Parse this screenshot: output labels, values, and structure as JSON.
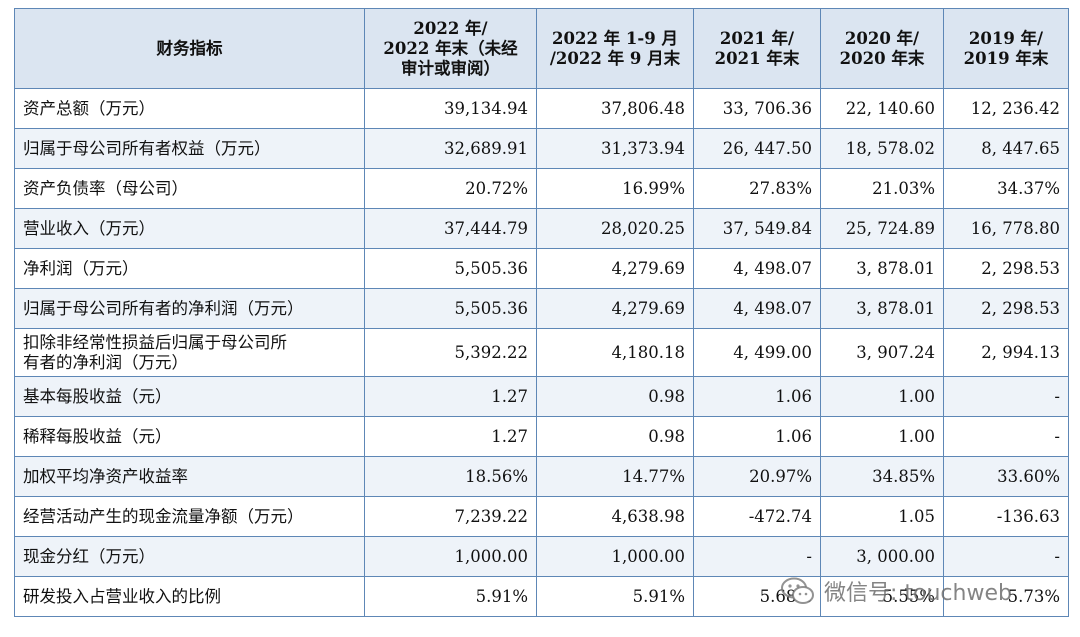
{
  "table": {
    "headers": [
      "财务指标",
      "2022 年/\n2022 年末（未经\n审计或审阅）",
      "2022 年 1-9 月\n/2022 年 9 月末",
      "2021 年/\n2021 年末",
      "2020 年/\n2020 年末",
      "2019 年/\n2019 年末"
    ],
    "rows": [
      [
        "资产总额（万元）",
        "39,134.94",
        "37,806.48",
        "33, 706.36",
        "22, 140.60",
        "12, 236.42"
      ],
      [
        "归属于母公司所有者权益（万元）",
        "32,689.91",
        "31,373.94",
        "26, 447.50",
        "18, 578.02",
        "8, 447.65"
      ],
      [
        "资产负债率（母公司）",
        "20.72%",
        "16.99%",
        "27.83%",
        "21.03%",
        "34.37%"
      ],
      [
        "营业收入（万元）",
        "37,444.79",
        "28,020.25",
        "37, 549.84",
        "25, 724.89",
        "16, 778.80"
      ],
      [
        "净利润（万元）",
        "5,505.36",
        "4,279.69",
        "4, 498.07",
        "3, 878.01",
        "2, 298.53"
      ],
      [
        "归属于母公司所有者的净利润（万元）",
        "5,505.36",
        "4,279.69",
        "4, 498.07",
        "3, 878.01",
        "2, 298.53"
      ],
      [
        "扣除非经常性损益后归属于母公司所\n有者的净利润（万元）",
        "5,392.22",
        "4,180.18",
        "4, 499.00",
        "3, 907.24",
        "2, 994.13"
      ],
      [
        "基本每股收益（元）",
        "1.27",
        "0.98",
        "1.06",
        "1.00",
        "-"
      ],
      [
        "稀释每股收益（元）",
        "1.27",
        "0.98",
        "1.06",
        "1.00",
        "-"
      ],
      [
        "加权平均净资产收益率",
        "18.56%",
        "14.77%",
        "20.97%",
        "34.85%",
        "33.60%"
      ],
      [
        "经营活动产生的现金流量净额（万元）",
        "7,239.22",
        "4,638.98",
        "-472.74",
        "1.05",
        "-136.63"
      ],
      [
        "现金分红（万元）",
        "1,000.00",
        "1,000.00",
        "-",
        "3, 000.00",
        "-"
      ],
      [
        "研发投入占营业收入的比例",
        "5.91%",
        "5.91%",
        "5.68%",
        "5.55%",
        "5.73%"
      ]
    ]
  },
  "watermark": {
    "text": "微信号: touchweb",
    "icon": "wechat-icon"
  }
}
